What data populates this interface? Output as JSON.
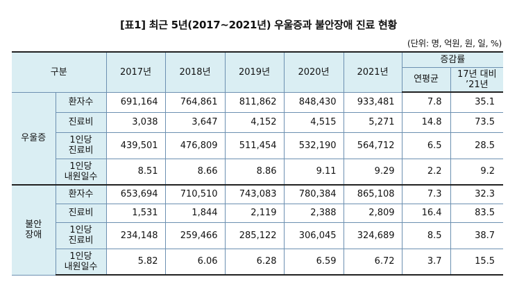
{
  "title": "[표1] 최근 5년(2017~2021년) 우울증과 불안장애 진료 현황",
  "unit": "(단위: 명, 억원, 원, 일, %)",
  "table": {
    "header": {
      "category": "구분",
      "years": [
        "2017년",
        "2018년",
        "2019년",
        "2020년",
        "2021년"
      ],
      "change": "증감률",
      "change_annual": "연평균",
      "change_compare_line1": "17년 대비",
      "change_compare_line2": "’21년"
    },
    "groups": [
      {
        "name": "우울증",
        "rows": [
          {
            "label1": "환자수",
            "label2": "",
            "values": [
              "691,164",
              "764,861",
              "811,862",
              "848,430",
              "933,481"
            ],
            "annual": "7.8",
            "compare": "35.1"
          },
          {
            "label1": "진료비",
            "label2": "",
            "values": [
              "3,038",
              "3,647",
              "4,152",
              "4,515",
              "5,271"
            ],
            "annual": "14.8",
            "compare": "73.5"
          },
          {
            "label1": "1인당",
            "label2": "진료비",
            "values": [
              "439,501",
              "476,809",
              "511,454",
              "532,190",
              "564,712"
            ],
            "annual": "6.5",
            "compare": "28.5"
          },
          {
            "label1": "1인당",
            "label2": "내원일수",
            "values": [
              "8.51",
              "8.66",
              "8.86",
              "9.11",
              "9.29"
            ],
            "annual": "2.2",
            "compare": "9.2"
          }
        ]
      },
      {
        "name_line1": "불안",
        "name_line2": "장애",
        "rows": [
          {
            "label1": "환자수",
            "label2": "",
            "values": [
              "653,694",
              "710,510",
              "743,083",
              "780,384",
              "865,108"
            ],
            "annual": "7.3",
            "compare": "32.3"
          },
          {
            "label1": "진료비",
            "label2": "",
            "values": [
              "1,531",
              "1,844",
              "2,119",
              "2,388",
              "2,809"
            ],
            "annual": "16.4",
            "compare": "83.5"
          },
          {
            "label1": "1인당",
            "label2": "진료비",
            "values": [
              "234,148",
              "259,466",
              "285,122",
              "306,045",
              "324,689"
            ],
            "annual": "8.5",
            "compare": "38.7"
          },
          {
            "label1": "1인당",
            "label2": "내원일수",
            "values": [
              "5.82",
              "6.06",
              "6.28",
              "6.59",
              "6.72"
            ],
            "annual": "3.7",
            "compare": "15.5"
          }
        ]
      }
    ]
  }
}
